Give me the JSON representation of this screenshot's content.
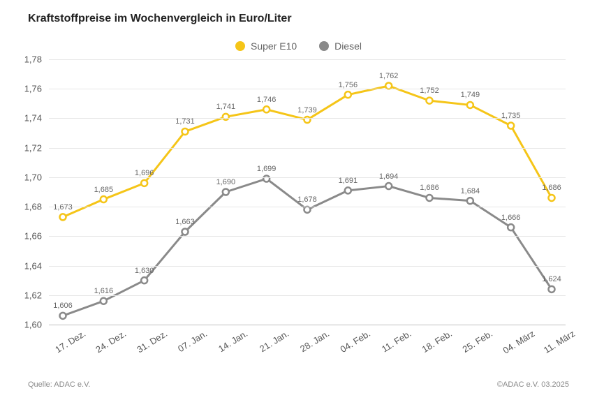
{
  "title": "Kraftstoffpreise im Wochenvergleich in Euro/Liter",
  "footer_left": "Quelle: ADAC e.V.",
  "footer_right": "©ADAC e.V. 03.2025",
  "chart": {
    "type": "line",
    "background_color": "#ffffff",
    "grid_color": "#e6e6e6",
    "axis_color": "#bfbfbf",
    "label_color": "#666666",
    "label_fontsize": 13,
    "value_label_fontsize": 11,
    "line_width": 3,
    "marker_radius": 4.5,
    "marker_fill": "#ffffff",
    "marker_stroke_width": 2.5,
    "ylim": [
      1.6,
      1.78
    ],
    "ytick_step": 0.02,
    "yticks": [
      "1,78",
      "1,76",
      "1,74",
      "1,72",
      "1,70",
      "1,68",
      "1,66",
      "1,64",
      "1,62",
      "1,60"
    ],
    "ytick_values": [
      1.78,
      1.76,
      1.74,
      1.72,
      1.7,
      1.68,
      1.66,
      1.64,
      1.62,
      1.6
    ],
    "categories": [
      "17. Dez.",
      "24. Dez.",
      "31. Dez.",
      "07. Jan.",
      "14. Jan.",
      "21. Jan.",
      "28. Jan.",
      "04. Feb.",
      "11. Feb.",
      "18. Feb.",
      "25. Feb.",
      "04. März",
      "11. März"
    ],
    "series": [
      {
        "name": "Super E10",
        "color": "#f5c518",
        "label_offset": -20,
        "values": [
          1.673,
          1.685,
          1.696,
          1.731,
          1.741,
          1.746,
          1.739,
          1.756,
          1.762,
          1.752,
          1.749,
          1.735,
          1.686
        ],
        "value_labels": [
          "1,673",
          "1,685",
          "1,696",
          "1,731",
          "1,741",
          "1,746",
          "1,739",
          "1,756",
          "1,762",
          "1,752",
          "1,749",
          "1,735",
          "1,686"
        ]
      },
      {
        "name": "Diesel",
        "color": "#8a8a8a",
        "label_offset": -20,
        "values": [
          1.606,
          1.616,
          1.63,
          1.663,
          1.69,
          1.699,
          1.678,
          1.691,
          1.694,
          1.686,
          1.684,
          1.666,
          1.624
        ],
        "value_labels": [
          "1,606",
          "1,616",
          "1,630",
          "1,663",
          "1,690",
          "1,699",
          "1,678",
          "1,691",
          "1,694",
          "1,686",
          "1,684",
          "1,666",
          "1,624"
        ]
      }
    ]
  }
}
